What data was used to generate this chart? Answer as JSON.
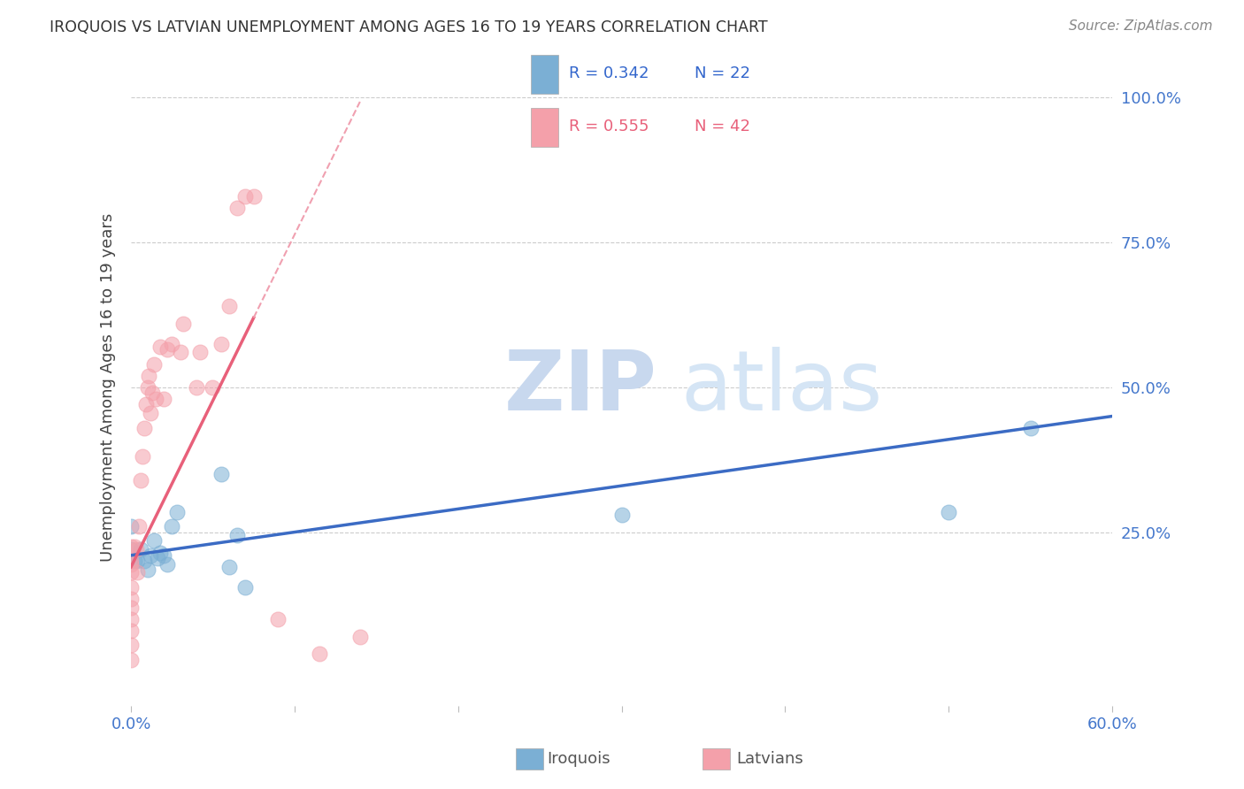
{
  "title": "IROQUOIS VS LATVIAN UNEMPLOYMENT AMONG AGES 16 TO 19 YEARS CORRELATION CHART",
  "source": "Source: ZipAtlas.com",
  "ylabel": "Unemployment Among Ages 16 to 19 years",
  "xlim": [
    0.0,
    0.6
  ],
  "ylim": [
    -0.05,
    1.05
  ],
  "plot_ylim": [
    -0.05,
    1.05
  ],
  "xticks": [
    0.0,
    0.1,
    0.2,
    0.3,
    0.4,
    0.5,
    0.6
  ],
  "xticklabels": [
    "0.0%",
    "",
    "",
    "",
    "",
    "",
    "60.0%"
  ],
  "yticks": [
    0.25,
    0.5,
    0.75,
    1.0
  ],
  "yticklabels": [
    "25.0%",
    "50.0%",
    "75.0%",
    "100.0%"
  ],
  "blue_color": "#7BAFD4",
  "pink_color": "#F4A0AA",
  "blue_line_color": "#3B6BC4",
  "pink_line_color": "#E8607A",
  "pink_line_dashed_color": "#F0A0B0",
  "blue_R": 0.342,
  "blue_N": 22,
  "pink_R": 0.555,
  "pink_N": 42,
  "legend_label_blue": "Iroquois",
  "legend_label_pink": "Latvians",
  "watermark_zip": "ZIP",
  "watermark_atlas": "atlas",
  "iroquois_x": [
    0.0,
    0.0,
    0.002,
    0.004,
    0.006,
    0.008,
    0.01,
    0.012,
    0.014,
    0.016,
    0.018,
    0.02,
    0.022,
    0.025,
    0.028,
    0.055,
    0.06,
    0.065,
    0.07,
    0.3,
    0.5,
    0.55
  ],
  "iroquois_y": [
    0.22,
    0.26,
    0.2,
    0.2,
    0.22,
    0.2,
    0.185,
    0.21,
    0.235,
    0.205,
    0.215,
    0.21,
    0.195,
    0.26,
    0.285,
    0.35,
    0.19,
    0.245,
    0.155,
    0.28,
    0.285,
    0.43
  ],
  "latvian_x": [
    0.0,
    0.0,
    0.0,
    0.0,
    0.0,
    0.0,
    0.0,
    0.0,
    0.0,
    0.0,
    0.0,
    0.002,
    0.003,
    0.004,
    0.005,
    0.006,
    0.007,
    0.008,
    0.009,
    0.01,
    0.011,
    0.012,
    0.013,
    0.014,
    0.015,
    0.018,
    0.02,
    0.022,
    0.025,
    0.03,
    0.032,
    0.04,
    0.042,
    0.05,
    0.055,
    0.06,
    0.065,
    0.07,
    0.075,
    0.09,
    0.115,
    0.14
  ],
  "latvian_y": [
    0.2,
    0.225,
    0.195,
    0.18,
    0.155,
    0.135,
    0.12,
    0.1,
    0.08,
    0.055,
    0.03,
    0.225,
    0.22,
    0.18,
    0.26,
    0.34,
    0.38,
    0.43,
    0.47,
    0.5,
    0.52,
    0.455,
    0.49,
    0.54,
    0.48,
    0.57,
    0.48,
    0.565,
    0.575,
    0.56,
    0.61,
    0.5,
    0.56,
    0.5,
    0.575,
    0.64,
    0.81,
    0.83,
    0.83,
    0.1,
    0.04,
    0.07
  ],
  "blue_line_x0": 0.0,
  "blue_line_y0": 0.21,
  "blue_line_x1": 0.6,
  "blue_line_y1": 0.45,
  "pink_line_x0": 0.0,
  "pink_line_y0": 0.19,
  "pink_line_x1": 0.15,
  "pink_line_y1": 1.05
}
